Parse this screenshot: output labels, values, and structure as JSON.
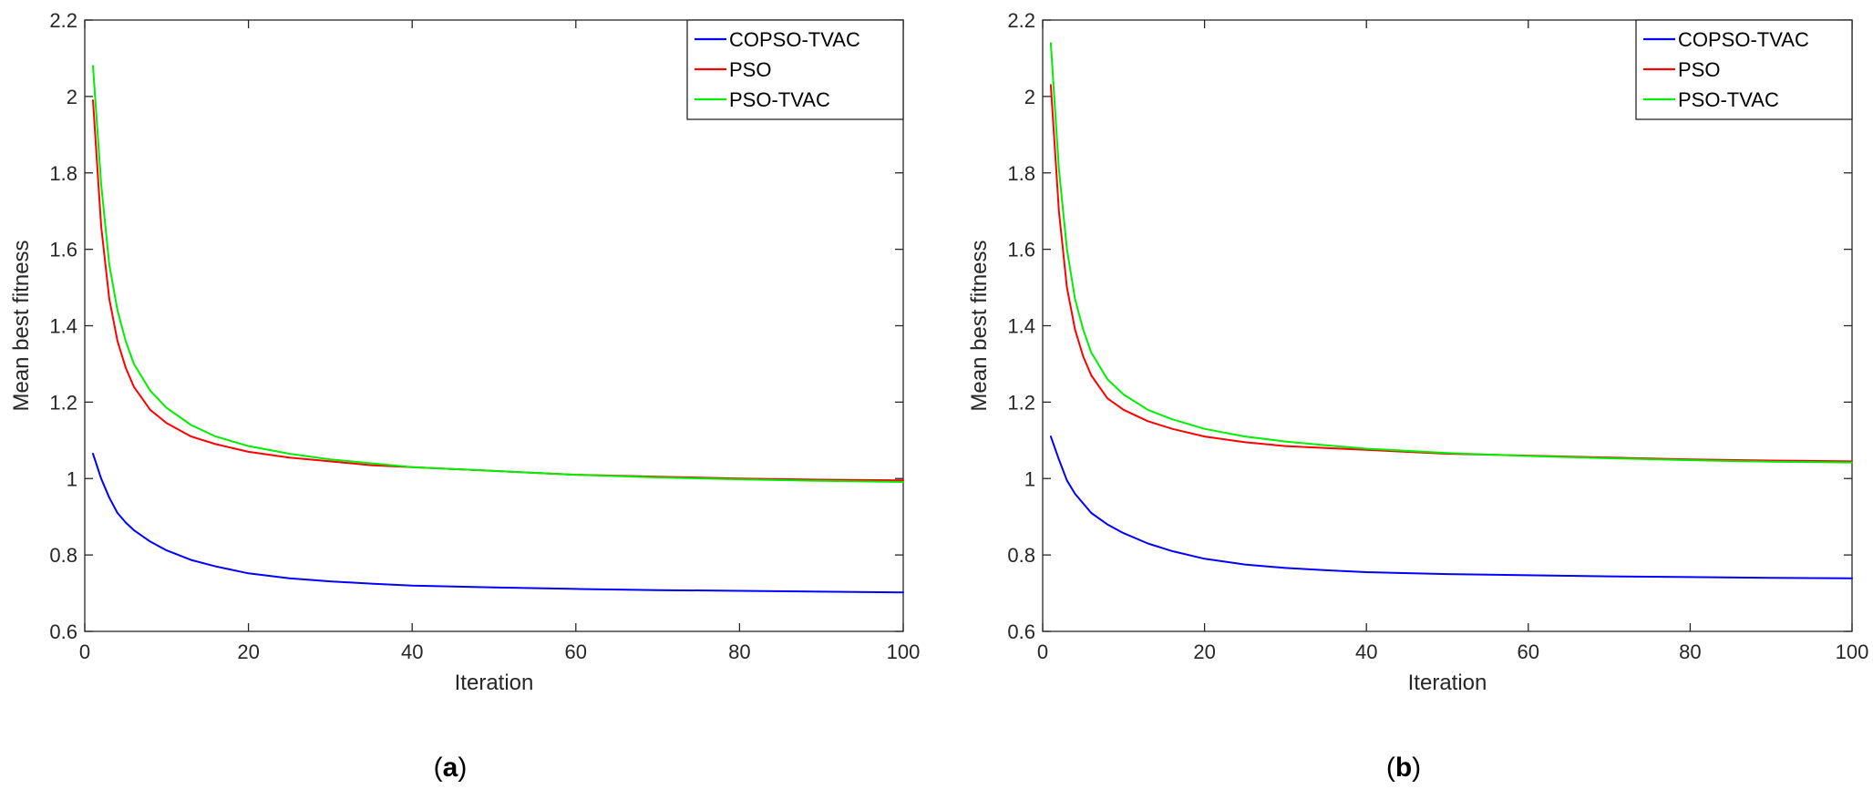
{
  "chart_data": [
    {
      "type": "line",
      "caption": "(a)",
      "caption_letter": "a",
      "xlabel": "Iteration",
      "ylabel": "Mean best fitness",
      "xlim": [
        0,
        100
      ],
      "ylim": [
        0.6,
        2.2
      ],
      "xticks": [
        0,
        20,
        40,
        60,
        80,
        100
      ],
      "yticks": [
        0.6,
        0.8,
        1,
        1.2,
        1.4,
        1.6,
        1.8,
        2,
        2.2
      ],
      "xtick_labels": [
        "0",
        "20",
        "40",
        "60",
        "80",
        "100"
      ],
      "ytick_labels": [
        "0.6",
        "0.8",
        "1",
        "1.2",
        "1.4",
        "1.6",
        "1.8",
        "2",
        "2.2"
      ],
      "grid": false,
      "legend_position": "top-right",
      "x": [
        1,
        2,
        3,
        4,
        5,
        6,
        8,
        10,
        13,
        16,
        20,
        25,
        30,
        35,
        40,
        50,
        60,
        70,
        80,
        90,
        100
      ],
      "series": [
        {
          "name": "COPSO-TVAC",
          "color": "#0000ff",
          "values": [
            1.065,
            1.0,
            0.95,
            0.91,
            0.885,
            0.865,
            0.835,
            0.812,
            0.787,
            0.77,
            0.752,
            0.739,
            0.731,
            0.725,
            0.72,
            0.715,
            0.711,
            0.708,
            0.706,
            0.704,
            0.702
          ]
        },
        {
          "name": "PSO",
          "color": "#ff0000",
          "values": [
            1.99,
            1.66,
            1.47,
            1.36,
            1.29,
            1.24,
            1.18,
            1.145,
            1.11,
            1.09,
            1.07,
            1.055,
            1.045,
            1.035,
            1.03,
            1.02,
            1.01,
            1.005,
            1.0,
            0.997,
            0.995
          ]
        },
        {
          "name": "PSO-TVAC",
          "color": "#00ee00",
          "values": [
            2.08,
            1.77,
            1.56,
            1.44,
            1.36,
            1.3,
            1.23,
            1.185,
            1.14,
            1.11,
            1.085,
            1.065,
            1.05,
            1.04,
            1.03,
            1.02,
            1.01,
            1.003,
            0.998,
            0.994,
            0.991
          ]
        }
      ]
    },
    {
      "type": "line",
      "caption": "(b)",
      "caption_letter": "b",
      "xlabel": "Iteration",
      "ylabel": "Mean best fitness",
      "xlim": [
        0,
        100
      ],
      "ylim": [
        0.6,
        2.2
      ],
      "xticks": [
        0,
        20,
        40,
        60,
        80,
        100
      ],
      "yticks": [
        0.6,
        0.8,
        1,
        1.2,
        1.4,
        1.6,
        1.8,
        2,
        2.2
      ],
      "xtick_labels": [
        "0",
        "20",
        "40",
        "60",
        "80",
        "100"
      ],
      "ytick_labels": [
        "0.6",
        "0.8",
        "1",
        "1.2",
        "1.4",
        "1.6",
        "1.8",
        "2",
        "2.2"
      ],
      "grid": false,
      "legend_position": "top-right",
      "x": [
        1,
        2,
        3,
        4,
        5,
        6,
        8,
        10,
        13,
        16,
        20,
        25,
        30,
        35,
        40,
        50,
        60,
        70,
        80,
        90,
        100
      ],
      "series": [
        {
          "name": "COPSO-TVAC",
          "color": "#0000ff",
          "values": [
            1.11,
            1.05,
            0.995,
            0.96,
            0.935,
            0.91,
            0.88,
            0.857,
            0.83,
            0.81,
            0.79,
            0.775,
            0.766,
            0.76,
            0.755,
            0.75,
            0.747,
            0.744,
            0.742,
            0.74,
            0.739
          ]
        },
        {
          "name": "PSO",
          "color": "#ff0000",
          "values": [
            2.03,
            1.7,
            1.5,
            1.39,
            1.32,
            1.27,
            1.21,
            1.18,
            1.15,
            1.13,
            1.11,
            1.095,
            1.085,
            1.08,
            1.075,
            1.065,
            1.06,
            1.055,
            1.05,
            1.047,
            1.045
          ]
        },
        {
          "name": "PSO-TVAC",
          "color": "#00ee00",
          "values": [
            2.14,
            1.81,
            1.6,
            1.47,
            1.39,
            1.33,
            1.26,
            1.22,
            1.18,
            1.155,
            1.13,
            1.11,
            1.097,
            1.087,
            1.078,
            1.067,
            1.059,
            1.053,
            1.048,
            1.044,
            1.042
          ]
        }
      ]
    }
  ]
}
